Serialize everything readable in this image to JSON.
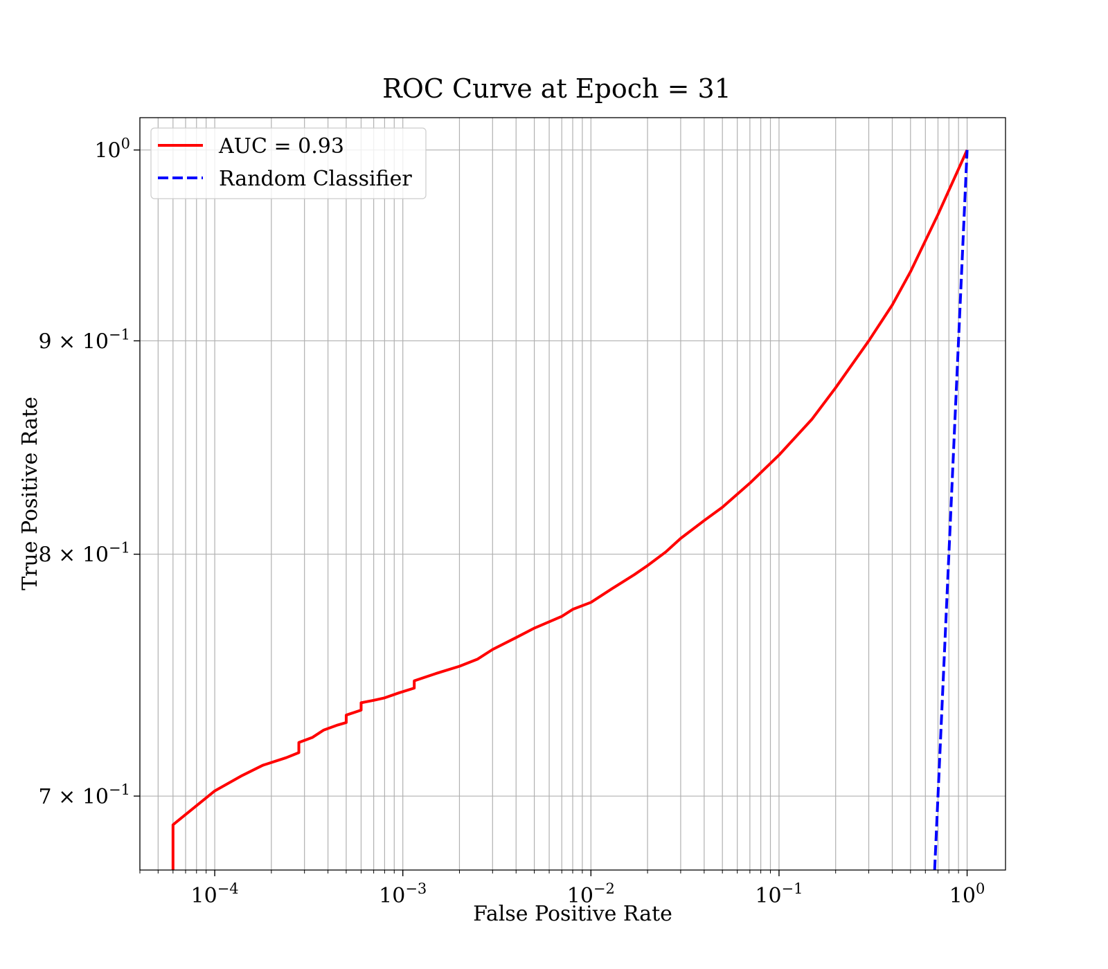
{
  "chart_data": {
    "type": "line",
    "title": "ROC Curve at Epoch = 31",
    "xlabel": "False Positive Rate",
    "ylabel": "True Positive Rate",
    "xscale": "log",
    "yscale": "log",
    "xlim": [
      4e-05,
      1.6
    ],
    "ylim": [
      0.672,
      1.018
    ],
    "grid": true,
    "grid_which": "both",
    "legend_placement": "upper-left",
    "x_tick_labels": [
      {
        "value": 0.0001,
        "base": "10",
        "exp": "−4"
      },
      {
        "value": 0.001,
        "base": "10",
        "exp": "−3"
      },
      {
        "value": 0.01,
        "base": "10",
        "exp": "−2"
      },
      {
        "value": 0.1,
        "base": "10",
        "exp": "−1"
      },
      {
        "value": 1,
        "base": "10",
        "exp": "0"
      }
    ],
    "y_tick_labels": [
      {
        "value": 1.0,
        "mant": "",
        "base": "10",
        "exp": "0"
      },
      {
        "value": 0.9,
        "mant": "9 × ",
        "base": "10",
        "exp": "−1"
      },
      {
        "value": 0.8,
        "mant": "8 × ",
        "base": "10",
        "exp": "−1"
      },
      {
        "value": 0.7,
        "mant": "7 × ",
        "base": "10",
        "exp": "−1"
      }
    ],
    "series": [
      {
        "name": "AUC = 0.93",
        "color": "#ff0000",
        "style": "solid",
        "x": [
          6e-05,
          6e-05,
          0.0001,
          0.00014,
          0.00018,
          0.00024,
          0.00028,
          0.00028,
          0.00033,
          0.00038,
          0.00045,
          0.0005,
          0.0005,
          0.0006,
          0.0006,
          0.0007,
          0.0008,
          0.00095,
          0.00115,
          0.00115,
          0.0015,
          0.002,
          0.0025,
          0.003,
          0.004,
          0.005,
          0.007,
          0.008,
          0.01,
          0.013,
          0.017,
          0.02,
          0.025,
          0.03,
          0.04,
          0.05,
          0.07,
          0.1,
          0.15,
          0.2,
          0.3,
          0.4,
          0.5,
          0.7,
          1.0
        ],
        "y": [
          0.672,
          0.689,
          0.702,
          0.708,
          0.712,
          0.715,
          0.717,
          0.721,
          0.723,
          0.726,
          0.728,
          0.729,
          0.732,
          0.734,
          0.737,
          0.738,
          0.739,
          0.741,
          0.743,
          0.746,
          0.749,
          0.752,
          0.755,
          0.759,
          0.764,
          0.768,
          0.773,
          0.776,
          0.779,
          0.785,
          0.791,
          0.795,
          0.801,
          0.807,
          0.815,
          0.821,
          0.832,
          0.845,
          0.862,
          0.877,
          0.9,
          0.918,
          0.935,
          0.965,
          1.0
        ]
      },
      {
        "name": "Random Classifier",
        "color": "#0000ff",
        "style": "dashed",
        "x": [
          0.672,
          1.0
        ],
        "y": [
          0.672,
          1.0
        ]
      }
    ]
  }
}
